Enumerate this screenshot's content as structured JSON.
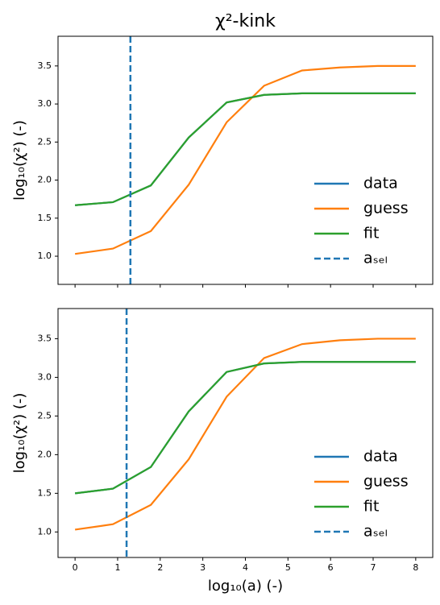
{
  "chart_data": [
    {
      "type": "line",
      "title": "χ²-kink",
      "ylabel": "log₁₀(χ²) (-)",
      "x": [
        0,
        0.89,
        1.78,
        2.67,
        3.56,
        4.44,
        5.33,
        6.22,
        7.11,
        8
      ],
      "series": [
        {
          "name": "data",
          "color": "#1f77b4",
          "values": [
            1.67,
            1.71,
            1.93,
            2.56,
            3.02,
            3.12,
            3.14,
            3.14,
            3.14,
            3.14
          ]
        },
        {
          "name": "guess",
          "color": "#ff7f0e",
          "values": [
            1.03,
            1.1,
            1.33,
            1.94,
            2.76,
            3.24,
            3.44,
            3.48,
            3.5,
            3.5
          ]
        },
        {
          "name": "fit",
          "color": "#2ca02c",
          "values": [
            1.67,
            1.71,
            1.93,
            2.56,
            3.02,
            3.12,
            3.14,
            3.14,
            3.14,
            3.14
          ]
        }
      ],
      "vline": {
        "name": "aₛₑₗ",
        "x": 1.3,
        "color": "#1f77b4",
        "style": "dashed"
      },
      "xlim": [
        -0.4,
        8.4
      ],
      "ylim": [
        0.63,
        3.89
      ],
      "xticks": [
        0,
        1,
        2,
        3,
        4,
        5,
        6,
        7,
        8
      ],
      "show_xtick_labels": false,
      "yticks": [
        {
          "value": 1,
          "label": "1.0"
        },
        {
          "value": 1.5,
          "label": "1.5"
        },
        {
          "value": 2,
          "label": "2.0"
        },
        {
          "value": 2.5,
          "label": "2.5"
        },
        {
          "value": 3,
          "label": "3.0"
        },
        {
          "value": 3.5,
          "label": "3.5"
        }
      ],
      "legend": "lower right"
    },
    {
      "type": "line",
      "ylabel": "log₁₀(χ²) (-)",
      "xlabel": "log₁₀(a) (-)",
      "x": [
        0,
        0.89,
        1.78,
        2.67,
        3.56,
        4.44,
        5.33,
        6.22,
        7.11,
        8
      ],
      "series": [
        {
          "name": "data",
          "color": "#1f77b4",
          "values": [
            1.5,
            1.56,
            1.84,
            2.56,
            3.07,
            3.18,
            3.2,
            3.2,
            3.2,
            3.2
          ]
        },
        {
          "name": "guess",
          "color": "#ff7f0e",
          "values": [
            1.03,
            1.1,
            1.35,
            1.94,
            2.75,
            3.25,
            3.43,
            3.48,
            3.5,
            3.5
          ]
        },
        {
          "name": "fit",
          "color": "#2ca02c",
          "values": [
            1.5,
            1.56,
            1.84,
            2.56,
            3.07,
            3.18,
            3.2,
            3.2,
            3.2,
            3.2
          ]
        }
      ],
      "vline": {
        "name": "aₛₑₗ",
        "x": 1.21,
        "color": "#1f77b4",
        "style": "dashed"
      },
      "xlim": [
        -0.4,
        8.4
      ],
      "ylim": [
        0.67,
        3.89
      ],
      "xticks": [
        0,
        1,
        2,
        3,
        4,
        5,
        6,
        7,
        8
      ],
      "show_xtick_labels": true,
      "yticks": [
        {
          "value": 1,
          "label": "1.0"
        },
        {
          "value": 1.5,
          "label": "1.5"
        },
        {
          "value": 2,
          "label": "2.0"
        },
        {
          "value": 2.5,
          "label": "2.5"
        },
        {
          "value": 3,
          "label": "3.0"
        },
        {
          "value": 3.5,
          "label": "3.5"
        }
      ],
      "legend": "lower right"
    }
  ]
}
